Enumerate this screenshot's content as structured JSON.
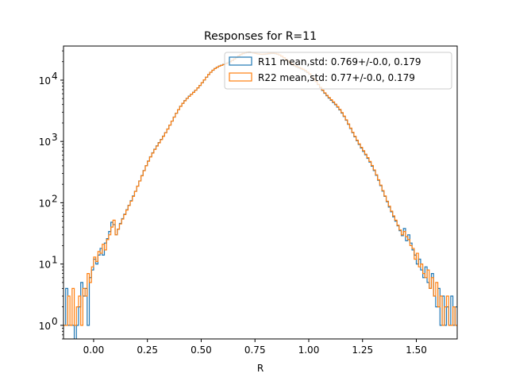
{
  "chart_data": {
    "type": "histogram-step",
    "title": "Responses for R=11",
    "xlabel": "R",
    "ylabel": "",
    "xlim": [
      -0.14,
      1.69
    ],
    "ylim": [
      0.6,
      36000
    ],
    "yscale": "log",
    "grid": false,
    "legend_position": "upper right",
    "x_ticks": [
      {
        "value": 0.0,
        "label": "0.00"
      },
      {
        "value": 0.25,
        "label": "0.25"
      },
      {
        "value": 0.5,
        "label": "0.50"
      },
      {
        "value": 0.75,
        "label": "0.75"
      },
      {
        "value": 1.0,
        "label": "1.00"
      },
      {
        "value": 1.25,
        "label": "1.25"
      },
      {
        "value": 1.5,
        "label": "1.50"
      }
    ],
    "y_ticks": [
      {
        "value": 1,
        "base": "10",
        "exp": "0"
      },
      {
        "value": 10,
        "base": "10",
        "exp": "1"
      },
      {
        "value": 100,
        "base": "10",
        "exp": "2"
      },
      {
        "value": 1000,
        "base": "10",
        "exp": "3"
      },
      {
        "value": 10000,
        "base": "10",
        "exp": "4"
      }
    ],
    "series": [
      {
        "name": "R11 mean,std: 0.769+/-0.0, 0.179",
        "color": "#1f77b4",
        "mean": 0.769,
        "std": 0.179,
        "peak": 28000,
        "bin_start": -0.14,
        "bin_end": 1.69,
        "bin_width": 0.01,
        "low_tail": [
          1,
          4,
          1,
          1,
          1,
          0,
          1,
          2,
          5,
          3,
          4,
          1,
          6,
          8,
          12,
          10,
          14,
          18,
          14,
          22,
          26,
          34,
          48,
          44
        ],
        "high_tail": [
          38,
          24,
          30,
          22,
          17,
          14,
          10,
          12,
          8,
          6,
          9,
          5,
          4,
          7,
          3,
          2,
          4,
          1,
          3,
          1,
          2,
          1,
          3,
          1,
          2
        ]
      },
      {
        "name": "R22 mean,std: 0.77+/-0.0, 0.179",
        "color": "#ff7f0e",
        "mean": 0.77,
        "std": 0.179,
        "peak": 28200,
        "bin_start": -0.14,
        "bin_end": 1.69,
        "bin_width": 0.01,
        "low_tail": [
          1,
          1,
          3,
          1,
          4,
          1,
          2,
          3,
          1,
          4,
          3,
          7,
          5,
          9,
          13,
          11,
          16,
          15,
          21,
          17,
          25,
          30,
          40,
          52
        ],
        "high_tail": [
          34,
          28,
          25,
          20,
          18,
          12,
          15,
          9,
          10,
          7,
          6,
          8,
          4,
          6,
          3,
          5,
          2,
          3,
          1,
          2,
          3,
          1,
          1,
          2,
          1
        ]
      }
    ]
  }
}
